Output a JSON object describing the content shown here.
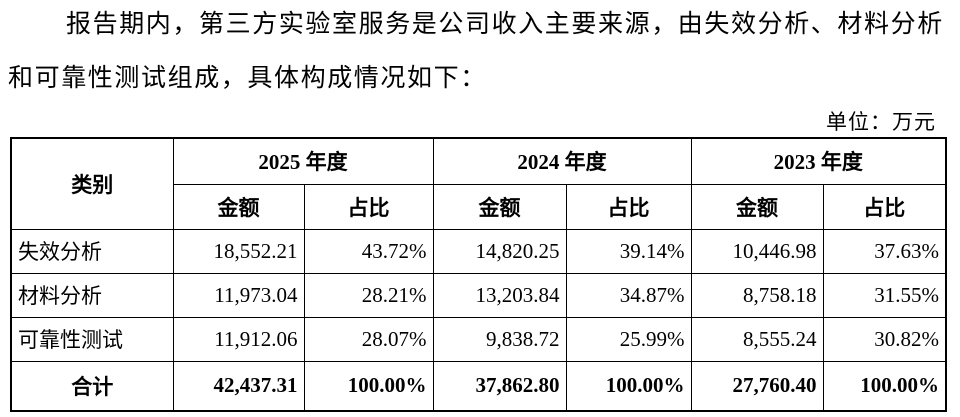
{
  "paragraph_lines": [
    "报告期内，第三方实验室服务是公司收入主要来源，由失效分析、材料分析",
    "和可靠性测试组成，具体构成情况如下："
  ],
  "unit": "单位：万元",
  "table": {
    "category_header": "类别",
    "groups": [
      {
        "year": "2025 年度",
        "columns": [
          "金额",
          "占比"
        ]
      },
      {
        "year": "2024 年度",
        "columns": [
          "金额",
          "占比"
        ]
      },
      {
        "year": "2023 年度",
        "columns": [
          "金额",
          "占比"
        ]
      }
    ],
    "rows": [
      [
        "失效分析",
        "18,552.21",
        "43.72%",
        "14,820.25",
        "39.14%",
        "10,446.98",
        "37.63%"
      ],
      [
        "材料分析",
        "11,973.04",
        "28.21%",
        "13,203.84",
        "34.87%",
        "8,758.18",
        "31.55%"
      ],
      [
        "可靠性测试",
        "11,912.06",
        "28.07%",
        "9,838.72",
        "25.99%",
        "8,555.24",
        "30.82%"
      ]
    ],
    "total": [
      "合计",
      "42,437.31",
      "100.00%",
      "37,862.80",
      "100.00%",
      "27,760.40",
      "100.00%"
    ]
  }
}
